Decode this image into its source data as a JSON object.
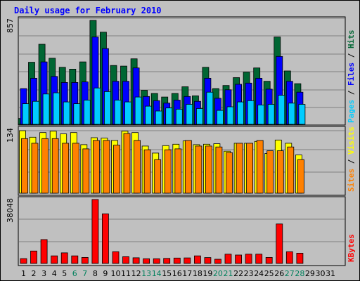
{
  "chart_data": {
    "type": "bar",
    "title": "Daily usage for February 2010",
    "colors": {
      "hits": "#006633",
      "files": "#0000ff",
      "pages": "#00ccff",
      "visits": "#ffff00",
      "sites": "#ff8000",
      "kbytes": "#ff0000",
      "weekend_label": "#00805c",
      "weekday_label": "#000000"
    },
    "days": [
      "1",
      "2",
      "3",
      "4",
      "5",
      "6",
      "7",
      "8",
      "9",
      "10",
      "11",
      "12",
      "13",
      "14",
      "15",
      "16",
      "17",
      "18",
      "19",
      "20",
      "21",
      "22",
      "23",
      "24",
      "25",
      "26",
      "27",
      "28",
      "29",
      "30",
      "31"
    ],
    "weekend_days": [
      "6",
      "7",
      "13",
      "14",
      "20",
      "21",
      "27",
      "28"
    ],
    "panels": [
      {
        "name": "hits-files-pages",
        "ymax_label": "857",
        "ylim": [
          0,
          857
        ],
        "legend": [
          {
            "text": "Pages",
            "color": "#00ccff"
          },
          {
            "text": " / ",
            "color": "#000000"
          },
          {
            "text": "Files",
            "color": "#0000ff"
          },
          {
            "text": " / ",
            "color": "#000000"
          },
          {
            "text": "Hits",
            "color": "#006633"
          }
        ],
        "series": [
          {
            "name": "Hits",
            "color": "#006633",
            "values": [
              48,
              512,
              660,
              545,
              470,
              455,
              515,
              857,
              760,
              485,
              480,
              540,
              280,
              255,
              225,
              255,
              310,
              235,
              470,
              295,
              320,
              385,
              430,
              465,
              355,
              720,
              440,
              335,
              0,
              0,
              0
            ]
          },
          {
            "name": "Files",
            "color": "#0000ff",
            "values": [
              295,
              380,
              515,
              395,
              345,
              345,
              350,
              720,
              625,
              355,
              355,
              465,
              230,
              195,
              175,
              200,
              230,
              190,
              380,
              215,
              285,
              330,
              340,
              380,
              290,
              560,
              355,
              265,
              0,
              0,
              0
            ]
          },
          {
            "name": "Pages",
            "color": "#00ccff",
            "values": [
              170,
              190,
              250,
              260,
              185,
              170,
              200,
              300,
              270,
              200,
              185,
              225,
              150,
              110,
              135,
              125,
              165,
              130,
              265,
              115,
              145,
              185,
              195,
              160,
              165,
              240,
              175,
              165,
              0,
              0,
              0
            ]
          }
        ]
      },
      {
        "name": "visits-sites",
        "ymax_label": "134",
        "ylim": [
          0,
          134
        ],
        "legend": [
          {
            "text": "Sites",
            "color": "#ff8000"
          },
          {
            "text": " / ",
            "color": "#000000"
          },
          {
            "text": "Visits",
            "color": "#ffff00"
          }
        ],
        "series": [
          {
            "name": "Visits",
            "color": "#ffff00",
            "values": [
              134,
              120,
              130,
              133,
              127,
              130,
              104,
              119,
              118,
              113,
              133,
              130,
              101,
              86,
              102,
              105,
              112,
              104,
              105,
              106,
              90,
              107,
              107,
              111,
              85,
              114,
              107,
              82,
              0,
              0,
              0
            ]
          },
          {
            "name": "Sites",
            "color": "#ff8000",
            "values": [
              117,
              107,
              117,
              117,
              107,
              107,
              95,
              113,
              113,
              103,
              128,
              113,
              93,
              72,
              93,
              95,
              113,
              101,
              101,
              99,
              87,
              107,
              107,
              113,
              91,
              91,
              99,
              72,
              0,
              0,
              0
            ]
          }
        ]
      },
      {
        "name": "kbytes",
        "ymax_label": "38048",
        "ylim": [
          0,
          38048
        ],
        "legend": [
          {
            "text": "KBytes",
            "color": "#ff0000"
          }
        ],
        "series": [
          {
            "name": "KBytes",
            "color": "#ff0000",
            "values": [
              2900,
              7400,
              14200,
              4500,
              6300,
              4500,
              3600,
              38048,
              29500,
              7000,
              4000,
              3400,
              2800,
              2800,
              3000,
              3200,
              3300,
              4500,
              3500,
              2500,
              5500,
              5000,
              5500,
              5500,
              3600,
              23500,
              7000,
              6100,
              0,
              0,
              0
            ]
          }
        ]
      }
    ]
  }
}
